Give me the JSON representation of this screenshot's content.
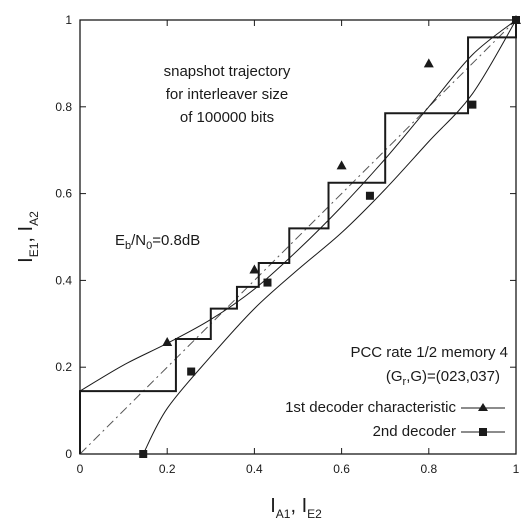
{
  "chart_data": {
    "type": "line",
    "xlim": [
      0,
      1
    ],
    "ylim": [
      0,
      1
    ],
    "x_ticks": [
      "0",
      "0.2",
      "0.4",
      "0.6",
      "0.8",
      "1"
    ],
    "y_ticks": [
      "0",
      "0.2",
      "0.4",
      "0.6",
      "0.8",
      "1"
    ],
    "xlabel": {
      "main1": "I",
      "sub1": "A1",
      "sep": ", ",
      "main2": "I",
      "sub2": "E2"
    },
    "ylabel": {
      "main1": "I",
      "sub1": "E1",
      "sep": ", ",
      "main2": "I",
      "sub2": "A2"
    },
    "grid": false,
    "annotations": {
      "snapshot": [
        "snapshot trajectory",
        "for interleaver size",
        "of 100000 bits"
      ],
      "ebno": {
        "e": "E",
        "b": "b",
        "slash": "/N",
        "zero": "0",
        "value": "=0.8dB"
      },
      "code": {
        "line1": "PCC rate 1/2 memory 4",
        "line2": "(G",
        "line2_sub": "r",
        "line2_rest": ",G)=(023,037)"
      }
    },
    "legend_placement": "bottom-right",
    "series": [
      {
        "name": "1st decoder characteristic",
        "marker": "triangle",
        "color": "#1a1a1a",
        "curve": [
          [
            0,
            0.145
          ],
          [
            0.1,
            0.205
          ],
          [
            0.2,
            0.255
          ],
          [
            0.3,
            0.31
          ],
          [
            0.4,
            0.38
          ],
          [
            0.5,
            0.47
          ],
          [
            0.6,
            0.57
          ],
          [
            0.7,
            0.68
          ],
          [
            0.8,
            0.8
          ],
          [
            0.9,
            0.92
          ],
          [
            1.0,
            1.0
          ]
        ],
        "markers": [
          [
            0.2,
            0.258
          ],
          [
            0.4,
            0.425
          ],
          [
            0.6,
            0.665
          ],
          [
            0.8,
            0.9
          ],
          [
            1.0,
            1.0
          ]
        ]
      },
      {
        "name": "2nd decoder",
        "marker": "square",
        "color": "#1a1a1a",
        "curve": [
          [
            0.145,
            0.0
          ],
          [
            0.2,
            0.105
          ],
          [
            0.3,
            0.225
          ],
          [
            0.4,
            0.335
          ],
          [
            0.5,
            0.425
          ],
          [
            0.6,
            0.51
          ],
          [
            0.7,
            0.61
          ],
          [
            0.8,
            0.72
          ],
          [
            0.9,
            0.83
          ],
          [
            1.0,
            1.0
          ]
        ],
        "markers": [
          [
            0.145,
            0.0
          ],
          [
            0.255,
            0.19
          ],
          [
            0.43,
            0.395
          ],
          [
            0.665,
            0.595
          ],
          [
            0.9,
            0.805
          ],
          [
            1.0,
            1.0
          ]
        ]
      }
    ],
    "diagonal": [
      [
        0,
        0
      ],
      [
        1,
        1
      ]
    ],
    "trajectory": [
      [
        0,
        0
      ],
      [
        0,
        0.145
      ],
      [
        0.22,
        0.145
      ],
      [
        0.22,
        0.265
      ],
      [
        0.3,
        0.265
      ],
      [
        0.3,
        0.335
      ],
      [
        0.36,
        0.335
      ],
      [
        0.36,
        0.385
      ],
      [
        0.41,
        0.385
      ],
      [
        0.41,
        0.44
      ],
      [
        0.48,
        0.44
      ],
      [
        0.48,
        0.52
      ],
      [
        0.57,
        0.52
      ],
      [
        0.57,
        0.625
      ],
      [
        0.7,
        0.625
      ],
      [
        0.7,
        0.785
      ],
      [
        0.89,
        0.785
      ],
      [
        0.89,
        0.96
      ],
      [
        1.0,
        0.96
      ],
      [
        1.0,
        1.0
      ]
    ]
  }
}
